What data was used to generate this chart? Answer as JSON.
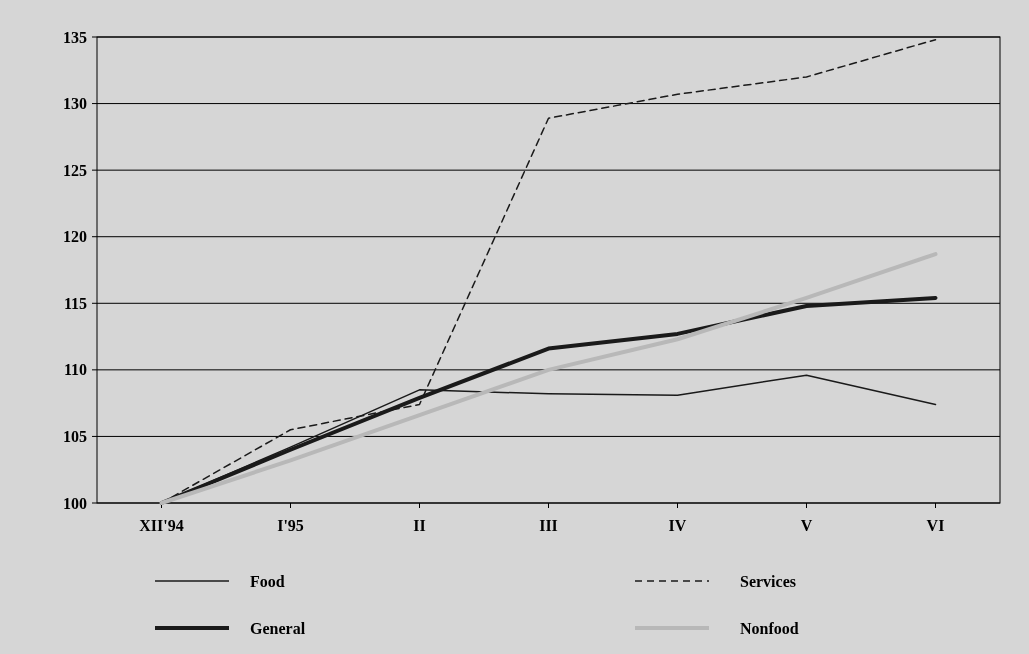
{
  "chart_data": {
    "type": "line",
    "categories": [
      "XII'94",
      "I'95",
      "II",
      "III",
      "IV",
      "V",
      "VI"
    ],
    "ylim": [
      100,
      135
    ],
    "yticks": [
      100,
      105,
      110,
      115,
      120,
      125,
      130,
      135
    ],
    "grid": "y",
    "legend": "bottom",
    "series": [
      {
        "name": "Food",
        "color": "#1a1a1a",
        "line_style": "solid",
        "values": [
          100,
          104.2,
          108.5,
          108.2,
          108.1,
          109.6,
          107.4
        ]
      },
      {
        "name": "Services",
        "color": "#1a1a1a",
        "line_style": "dashed",
        "values": [
          100,
          105.5,
          107.4,
          128.9,
          130.7,
          132.0,
          134.8
        ]
      },
      {
        "name": "General",
        "color": "#1a1a1a",
        "line_style": "solid",
        "values": [
          100,
          104,
          107.9,
          111.6,
          112.7,
          114.8,
          115.4
        ]
      },
      {
        "name": "Nonfood",
        "color": "#b8b8b8",
        "line_style": "solid",
        "values": [
          100,
          103.2,
          106.6,
          110.0,
          112.3,
          115.4,
          118.7
        ]
      }
    ]
  }
}
